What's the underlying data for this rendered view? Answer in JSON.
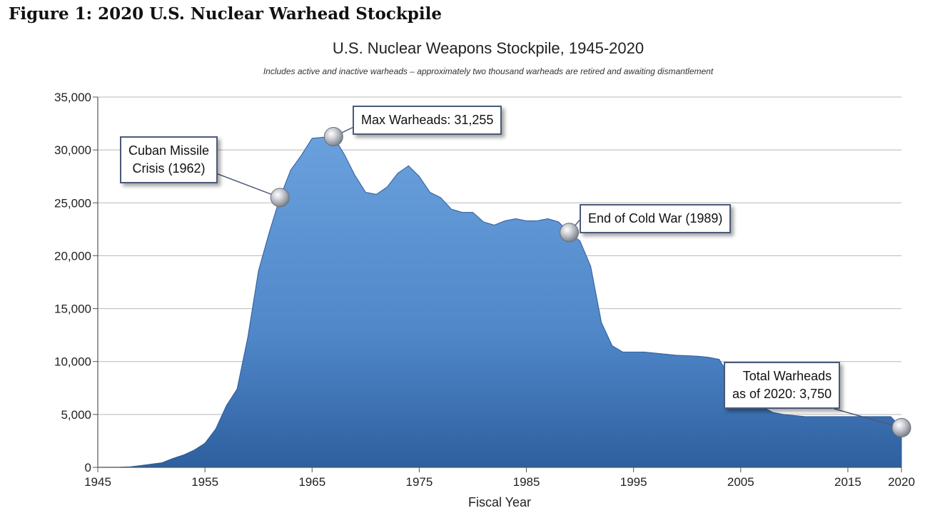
{
  "figure_caption": "Figure 1: 2020 U.S. Nuclear Warhead Stockpile",
  "chart_data": {
    "type": "area",
    "title": "U.S. Nuclear Weapons Stockpile, 1945-2020",
    "subtitle": "Includes active and inactive warheads – approximately two thousand warheads are retired and awaiting dismantlement",
    "xlabel": "Fiscal Year",
    "ylabel": "",
    "xlim": [
      1945,
      2020
    ],
    "ylim": [
      0,
      35000
    ],
    "x_ticks": [
      "1945",
      "1955",
      "1965",
      "1975",
      "1985",
      "1995",
      "2005",
      "2015",
      "2020"
    ],
    "y_ticks": [
      "0",
      "5,000",
      "10,000",
      "15,000",
      "20,000",
      "25,000",
      "30,000",
      "35,000"
    ],
    "grid": true,
    "fill_color": "#4f87c9",
    "series": [
      {
        "x": [
          1945,
          1946,
          1947,
          1948,
          1949,
          1950,
          1951,
          1952,
          1953,
          1954,
          1955,
          1956,
          1957,
          1958,
          1959,
          1960,
          1961,
          1962,
          1963,
          1964,
          1965,
          1966,
          1967,
          1968,
          1969,
          1970,
          1971,
          1972,
          1973,
          1974,
          1975,
          1976,
          1977,
          1978,
          1979,
          1980,
          1981,
          1982,
          1983,
          1984,
          1985,
          1986,
          1987,
          1988,
          1989,
          1990,
          1991,
          1992,
          1993,
          1994,
          1995,
          1996,
          1997,
          1998,
          1999,
          2000,
          2001,
          2002,
          2003,
          2004,
          2005,
          2006,
          2007,
          2008,
          2009,
          2010,
          2011,
          2012,
          2013,
          2014,
          2015,
          2016,
          2017,
          2018,
          2019,
          2020
        ],
        "y": [
          2,
          9,
          13,
          50,
          170,
          300,
          440,
          840,
          1170,
          1630,
          2280,
          3620,
          5830,
          7400,
          12300,
          18600,
          22200,
          25500,
          28100,
          29500,
          31100,
          31200,
          31255,
          29600,
          27600,
          26000,
          25800,
          26500,
          27800,
          28500,
          27500,
          26000,
          25500,
          24400,
          24100,
          24100,
          23200,
          22900,
          23300,
          23500,
          23300,
          23300,
          23500,
          23200,
          22200,
          21400,
          19000,
          13700,
          11500,
          10900,
          10900,
          10900,
          10800,
          10700,
          10600,
          10550,
          10500,
          10400,
          10200,
          8500,
          8300,
          7800,
          5700,
          5200,
          5000,
          4900,
          4800,
          4800,
          4800,
          4800,
          4800,
          4800,
          4800,
          4800,
          4800,
          3750
        ]
      }
    ],
    "annotations": [
      {
        "lines": [
          "Cuban Missile",
          "Crisis (1962)"
        ],
        "x": 1962,
        "y": 25500
      },
      {
        "lines": [
          "Max Warheads: 31,255"
        ],
        "x": 1967,
        "y": 31255
      },
      {
        "lines": [
          "End of Cold War (1989)"
        ],
        "x": 1989,
        "y": 22200
      },
      {
        "lines": [
          "Total Warheads",
          "as of 2020: 3,750"
        ],
        "x": 2020,
        "y": 3750
      }
    ]
  }
}
